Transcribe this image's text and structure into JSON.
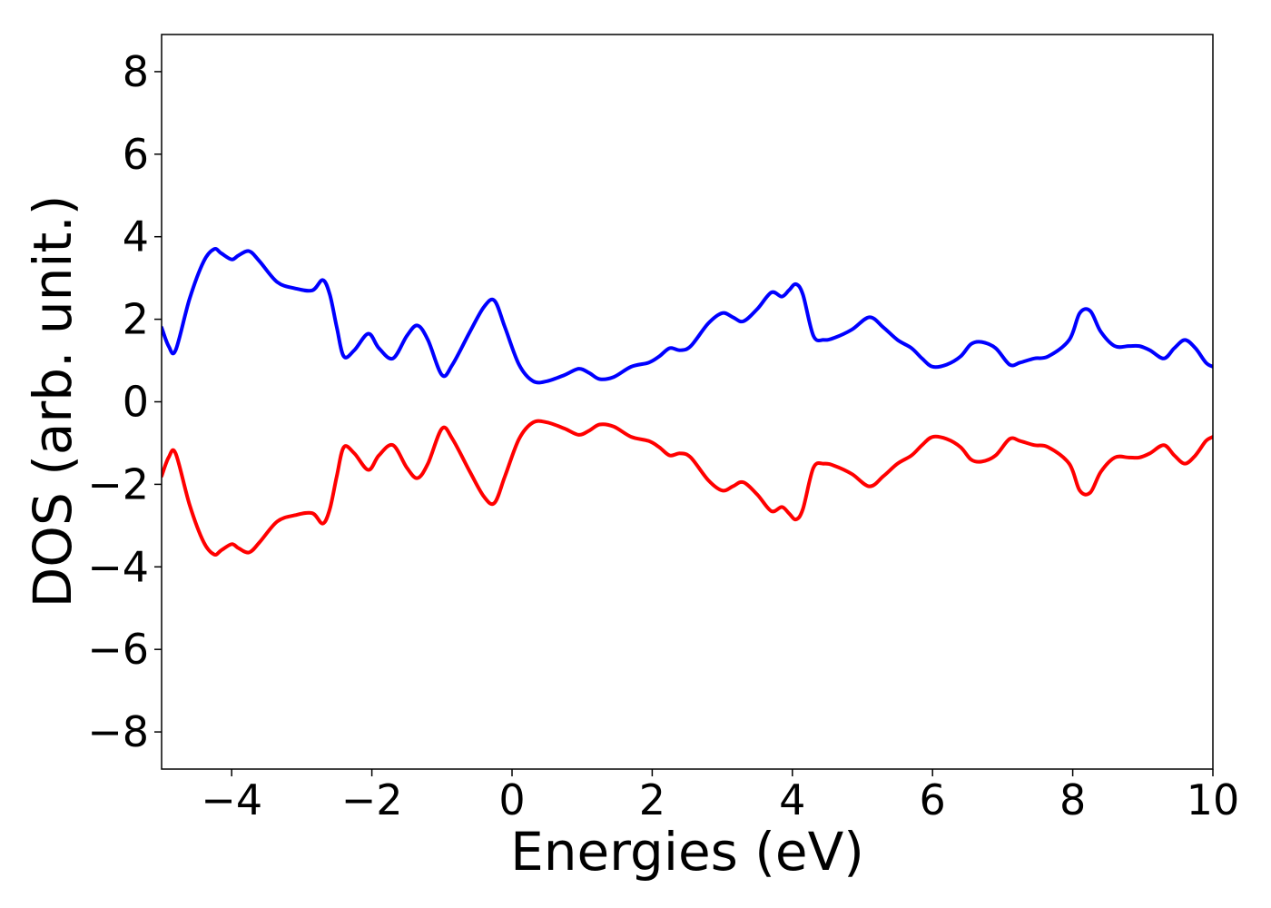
{
  "chart_data": {
    "type": "line",
    "title": "",
    "xlabel": "Energies (eV)",
    "ylabel": "DOS (arb. unit.)",
    "xlim": [
      -5,
      10
    ],
    "ylim": [
      -8.9,
      8.9
    ],
    "x_ticks": [
      -4,
      -2,
      0,
      2,
      4,
      6,
      8,
      10
    ],
    "y_ticks": [
      8,
      6,
      4,
      2,
      0,
      -2,
      -4,
      -6,
      -8
    ],
    "x_tick_labels": [
      "−4",
      "−2",
      "0",
      "2",
      "4",
      "6",
      "8",
      "10"
    ],
    "y_tick_labels": [
      "8",
      "6",
      "4",
      "2",
      "0",
      "−2",
      "−4",
      "−6",
      "−8"
    ],
    "grid": false,
    "legend": "none",
    "series": [
      {
        "color": "#0000ff",
        "x": [
          -5.0,
          -4.9,
          -4.8,
          -4.6,
          -4.4,
          -4.25,
          -4.15,
          -4.0,
          -3.9,
          -3.75,
          -3.6,
          -3.35,
          -3.1,
          -2.85,
          -2.7,
          -2.6,
          -2.5,
          -2.4,
          -2.25,
          -2.05,
          -1.9,
          -1.7,
          -1.5,
          -1.35,
          -1.2,
          -1.0,
          -0.85,
          -0.6,
          -0.4,
          -0.25,
          -0.1,
          0.1,
          0.3,
          0.5,
          0.75,
          0.95,
          1.1,
          1.25,
          1.45,
          1.7,
          1.95,
          2.1,
          2.25,
          2.4,
          2.55,
          2.8,
          3.0,
          3.15,
          3.3,
          3.5,
          3.7,
          3.85,
          3.95,
          4.05,
          4.15,
          4.3,
          4.45,
          4.6,
          4.85,
          5.1,
          5.3,
          5.5,
          5.7,
          5.85,
          6.0,
          6.2,
          6.4,
          6.55,
          6.7,
          6.9,
          7.1,
          7.25,
          7.45,
          7.65,
          7.95,
          8.1,
          8.25,
          8.4,
          8.6,
          8.8,
          8.95,
          9.1,
          9.3,
          9.45,
          9.6,
          9.75,
          9.9,
          10.0
        ],
        "y": [
          1.8,
          1.35,
          1.25,
          2.5,
          3.4,
          3.7,
          3.6,
          3.45,
          3.55,
          3.65,
          3.4,
          2.9,
          2.75,
          2.7,
          2.95,
          2.6,
          1.8,
          1.1,
          1.25,
          1.65,
          1.3,
          1.05,
          1.6,
          1.85,
          1.5,
          0.65,
          0.9,
          1.7,
          2.3,
          2.45,
          1.8,
          0.9,
          0.5,
          0.5,
          0.65,
          0.8,
          0.7,
          0.55,
          0.6,
          0.85,
          0.95,
          1.1,
          1.3,
          1.25,
          1.35,
          1.9,
          2.15,
          2.05,
          1.95,
          2.25,
          2.65,
          2.55,
          2.7,
          2.85,
          2.6,
          1.6,
          1.5,
          1.55,
          1.75,
          2.05,
          1.8,
          1.5,
          1.3,
          1.05,
          0.85,
          0.9,
          1.1,
          1.4,
          1.45,
          1.3,
          0.9,
          0.95,
          1.05,
          1.1,
          1.5,
          2.15,
          2.2,
          1.7,
          1.35,
          1.35,
          1.35,
          1.25,
          1.05,
          1.3,
          1.5,
          1.3,
          0.95,
          0.85
        ]
      },
      {
        "color": "#ff0000",
        "x": [
          -5.0,
          -4.9,
          -4.8,
          -4.6,
          -4.4,
          -4.25,
          -4.15,
          -4.0,
          -3.9,
          -3.75,
          -3.6,
          -3.35,
          -3.1,
          -2.85,
          -2.7,
          -2.6,
          -2.5,
          -2.4,
          -2.25,
          -2.05,
          -1.9,
          -1.7,
          -1.5,
          -1.35,
          -1.2,
          -1.0,
          -0.85,
          -0.6,
          -0.4,
          -0.25,
          -0.1,
          0.1,
          0.3,
          0.5,
          0.75,
          0.95,
          1.1,
          1.25,
          1.45,
          1.7,
          1.95,
          2.1,
          2.25,
          2.4,
          2.55,
          2.8,
          3.0,
          3.15,
          3.3,
          3.5,
          3.7,
          3.85,
          3.95,
          4.05,
          4.15,
          4.3,
          4.45,
          4.6,
          4.85,
          5.1,
          5.3,
          5.5,
          5.7,
          5.85,
          6.0,
          6.2,
          6.4,
          6.55,
          6.7,
          6.9,
          7.1,
          7.25,
          7.45,
          7.65,
          7.95,
          8.1,
          8.25,
          8.4,
          8.6,
          8.8,
          8.95,
          9.1,
          9.3,
          9.45,
          9.6,
          9.75,
          9.9,
          10.0
        ],
        "y": [
          -1.8,
          -1.35,
          -1.25,
          -2.5,
          -3.4,
          -3.7,
          -3.6,
          -3.45,
          -3.55,
          -3.65,
          -3.4,
          -2.9,
          -2.75,
          -2.7,
          -2.95,
          -2.6,
          -1.8,
          -1.1,
          -1.25,
          -1.65,
          -1.3,
          -1.05,
          -1.6,
          -1.85,
          -1.5,
          -0.65,
          -0.9,
          -1.7,
          -2.3,
          -2.45,
          -1.8,
          -0.9,
          -0.5,
          -0.5,
          -0.65,
          -0.8,
          -0.7,
          -0.55,
          -0.6,
          -0.85,
          -0.95,
          -1.1,
          -1.3,
          -1.25,
          -1.35,
          -1.9,
          -2.15,
          -2.05,
          -1.95,
          -2.25,
          -2.65,
          -2.55,
          -2.7,
          -2.85,
          -2.6,
          -1.6,
          -1.5,
          -1.55,
          -1.75,
          -2.05,
          -1.8,
          -1.5,
          -1.3,
          -1.05,
          -0.85,
          -0.9,
          -1.1,
          -1.4,
          -1.45,
          -1.3,
          -0.9,
          -0.95,
          -1.05,
          -1.1,
          -1.5,
          -2.15,
          -2.2,
          -1.7,
          -1.35,
          -1.35,
          -1.35,
          -1.25,
          -1.05,
          -1.3,
          -1.5,
          -1.3,
          -0.95,
          -0.85
        ]
      }
    ]
  }
}
